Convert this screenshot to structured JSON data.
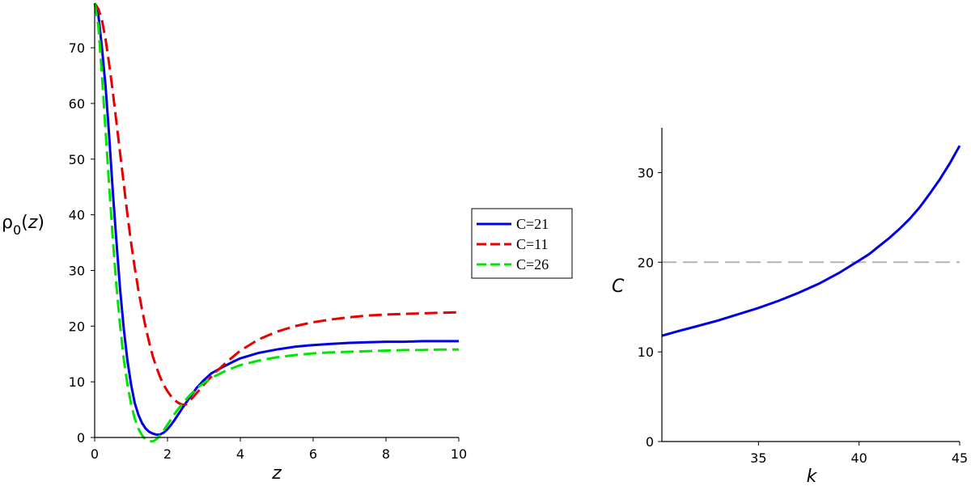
{
  "chart_data": [
    {
      "type": "line",
      "xlabel": "z",
      "ylabel": "ρ",
      "ylabel_sub": "0",
      "ylabel_arg": "z",
      "xlim": [
        0,
        10
      ],
      "ylim": [
        0,
        78
      ],
      "x_ticks": [
        "0",
        "2",
        "4",
        "6",
        "8",
        "10"
      ],
      "y_ticks": [
        "0",
        "10",
        "20",
        "30",
        "40",
        "50",
        "60",
        "70"
      ],
      "legend_position": "right",
      "series": [
        {
          "name": "C=21",
          "color": "#0000e6",
          "style": "solid",
          "x": [
            0,
            0.1,
            0.2,
            0.3,
            0.4,
            0.5,
            0.6,
            0.7,
            0.8,
            0.9,
            1.0,
            1.1,
            1.2,
            1.3,
            1.4,
            1.5,
            1.6,
            1.7,
            1.8,
            1.9,
            2.0,
            2.1,
            2.2,
            2.4,
            2.6,
            2.8,
            3.0,
            3.2,
            3.5,
            3.8,
            4.0,
            4.5,
            5.0,
            5.5,
            6.0,
            6.5,
            7.0,
            7.5,
            8.0,
            8.5,
            9.0,
            9.5,
            10.0
          ],
          "y": [
            78,
            76,
            70,
            63,
            54,
            44,
            35,
            26.5,
            19.5,
            13.8,
            9.5,
            6.2,
            4.1,
            2.6,
            1.6,
            1.0,
            0.7,
            0.5,
            0.55,
            0.9,
            1.5,
            2.3,
            3.2,
            5.2,
            7.1,
            8.9,
            10.3,
            11.5,
            12.6,
            13.6,
            14.2,
            15.2,
            15.8,
            16.3,
            16.6,
            16.8,
            17.0,
            17.1,
            17.2,
            17.2,
            17.3,
            17.3,
            17.3
          ]
        },
        {
          "name": "C=11",
          "color": "#e60000",
          "style": "dashed",
          "x": [
            0,
            0.1,
            0.2,
            0.3,
            0.4,
            0.5,
            0.6,
            0.7,
            0.8,
            0.9,
            1.0,
            1.1,
            1.2,
            1.3,
            1.4,
            1.5,
            1.6,
            1.7,
            1.8,
            1.9,
            2.0,
            2.1,
            2.2,
            2.3,
            2.4,
            2.5,
            2.7,
            3.0,
            3.3,
            3.6,
            4.0,
            4.5,
            5.0,
            5.5,
            6.0,
            6.5,
            7.0,
            7.5,
            8.0,
            8.5,
            9.0,
            9.5,
            10.0
          ],
          "y": [
            78,
            77,
            75,
            71.5,
            67,
            62,
            56.5,
            51,
            45.5,
            40,
            35,
            30.5,
            26.5,
            23,
            19.8,
            17,
            14.5,
            12.5,
            10.8,
            9.4,
            8.3,
            7.4,
            6.7,
            6.2,
            5.9,
            5.9,
            7.2,
            9.5,
            11.6,
            13.4,
            15.6,
            17.6,
            19.0,
            20.0,
            20.7,
            21.2,
            21.6,
            21.9,
            22.1,
            22.2,
            22.3,
            22.4,
            22.5
          ]
        },
        {
          "name": "C=26",
          "color": "#00e600",
          "style": "dashed",
          "x": [
            0,
            0.1,
            0.2,
            0.3,
            0.4,
            0.5,
            0.6,
            0.7,
            0.8,
            0.9,
            1.0,
            1.1,
            1.2,
            1.3,
            1.4,
            1.5,
            1.6,
            1.7,
            1.8,
            1.9,
            2.0,
            2.2,
            2.4,
            2.6,
            2.8,
            3.0,
            3.3,
            3.6,
            4.0,
            4.5,
            5.0,
            5.5,
            6.0,
            6.5,
            7.0,
            7.5,
            8.0,
            8.5,
            9.0,
            9.5,
            10.0
          ],
          "y": [
            78,
            74,
            65,
            55,
            45,
            35.5,
            27,
            20,
            14,
            9.5,
            6,
            3.4,
            1.6,
            0.4,
            -0.4,
            -0.7,
            -0.7,
            -0.3,
            0.4,
            1.3,
            2.3,
            4.3,
            6.0,
            7.5,
            8.8,
            9.8,
            11.0,
            12.0,
            13.0,
            13.8,
            14.4,
            14.8,
            15.1,
            15.3,
            15.4,
            15.5,
            15.6,
            15.7,
            15.7,
            15.8,
            15.8
          ]
        }
      ]
    },
    {
      "type": "line",
      "xlabel": "k",
      "ylabel": "C",
      "xlim": [
        30.2,
        45
      ],
      "ylim": [
        0,
        35
      ],
      "x_ticks": [
        "35",
        "40",
        "45"
      ],
      "y_ticks": [
        "0",
        "10",
        "20",
        "30"
      ],
      "reference_line": {
        "y": 20,
        "color": "#b4b4b4",
        "style": "dashed"
      },
      "series": [
        {
          "color": "#0000e6",
          "style": "solid",
          "x": [
            30.2,
            31,
            32,
            33,
            34,
            35,
            36,
            37,
            38,
            39,
            40,
            40.5,
            41,
            41.5,
            42,
            42.5,
            43,
            43.5,
            44,
            44.5,
            45
          ],
          "y": [
            11.8,
            12.3,
            12.9,
            13.5,
            14.2,
            14.9,
            15.7,
            16.6,
            17.6,
            18.8,
            20.2,
            20.9,
            21.8,
            22.7,
            23.7,
            24.8,
            26.1,
            27.6,
            29.2,
            31.0,
            33.0
          ]
        }
      ]
    }
  ]
}
